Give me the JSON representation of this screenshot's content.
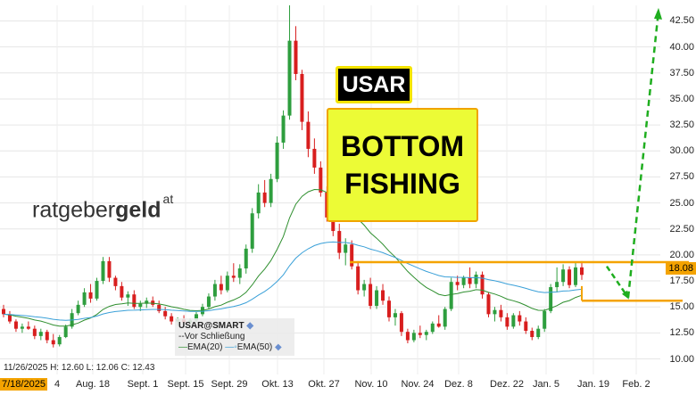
{
  "chart_data": {
    "type": "candlestick",
    "symbol": "USAR@SMART",
    "close_note": "--Vor Schließung",
    "legend": [
      "EMA(20)",
      "EMA(50)"
    ],
    "info_line": "11/26/2025 H: 12.60 L: 12.06 C: 12.43",
    "x_ticks": [
      "7/18/2025",
      "4",
      "Aug. 18",
      "Sept. 1",
      "Sept. 15",
      "Sept. 29",
      "Okt. 13",
      "Okt. 27",
      "Nov. 10",
      "Nov. 24",
      "Dez. 8",
      "Dez. 22",
      "Jan. 5",
      "Jan. 19",
      "Feb. 2"
    ],
    "y_ticks": [
      "10.00",
      "12.50",
      "15.00",
      "17.50",
      "20.00",
      "22.50",
      "25.00",
      "27.50",
      "30.00",
      "32.50",
      "35.00",
      "37.50",
      "40.00",
      "42.50"
    ],
    "ylim": [
      8.5,
      44
    ],
    "last_price": "18.08",
    "resistance": 19.3,
    "support": 15.6,
    "target": 43.5,
    "candles": [
      [
        14.8,
        15.2,
        14.0,
        14.3
      ],
      [
        14.3,
        14.6,
        13.4,
        13.6
      ],
      [
        13.6,
        13.8,
        12.6,
        12.9
      ],
      [
        12.9,
        13.4,
        12.5,
        13.1
      ],
      [
        13.1,
        13.6,
        12.8,
        12.9
      ],
      [
        12.9,
        13.2,
        11.9,
        12.2
      ],
      [
        12.2,
        12.9,
        11.8,
        12.6
      ],
      [
        12.6,
        12.8,
        11.5,
        11.8
      ],
      [
        11.8,
        12.4,
        11.1,
        11.4
      ],
      [
        11.4,
        12.3,
        11.2,
        12.1
      ],
      [
        12.1,
        13.3,
        12.0,
        13.1
      ],
      [
        13.1,
        14.8,
        12.9,
        14.4
      ],
      [
        14.4,
        15.6,
        14.2,
        15.2
      ],
      [
        15.2,
        16.8,
        15.0,
        16.4
      ],
      [
        16.4,
        17.2,
        15.4,
        15.8
      ],
      [
        15.8,
        17.8,
        15.6,
        17.5
      ],
      [
        17.5,
        19.8,
        17.2,
        19.4
      ],
      [
        19.4,
        19.8,
        17.4,
        17.8
      ],
      [
        17.8,
        18.0,
        16.6,
        17.0
      ],
      [
        17.0,
        17.4,
        15.6,
        15.9
      ],
      [
        15.9,
        16.5,
        15.1,
        16.2
      ],
      [
        16.2,
        16.6,
        14.8,
        15.0
      ],
      [
        15.0,
        15.6,
        14.6,
        15.3
      ],
      [
        15.3,
        15.9,
        14.9,
        15.6
      ],
      [
        15.6,
        16.0,
        15.0,
        15.2
      ],
      [
        15.2,
        15.6,
        14.4,
        14.6
      ],
      [
        14.6,
        15.0,
        13.8,
        14.1
      ],
      [
        14.1,
        14.4,
        13.3,
        13.6
      ],
      [
        13.6,
        14.0,
        13.2,
        13.8
      ],
      [
        13.8,
        14.2,
        13.4,
        13.5
      ],
      [
        13.5,
        13.9,
        13.1,
        13.7
      ],
      [
        13.7,
        14.5,
        13.5,
        14.3
      ],
      [
        14.3,
        15.3,
        14.1,
        15.0
      ],
      [
        15.0,
        16.3,
        14.8,
        16.0
      ],
      [
        16.0,
        17.6,
        15.6,
        17.2
      ],
      [
        17.2,
        18.0,
        16.2,
        16.6
      ],
      [
        16.6,
        18.4,
        16.4,
        18.0
      ],
      [
        18.0,
        19.2,
        17.4,
        17.8
      ],
      [
        17.8,
        19.1,
        17.2,
        18.7
      ],
      [
        18.7,
        21.0,
        18.2,
        20.6
      ],
      [
        20.6,
        24.5,
        20.2,
        24.0
      ],
      [
        24.0,
        26.8,
        23.5,
        26.0
      ],
      [
        26.0,
        27.2,
        24.6,
        25.0
      ],
      [
        25.0,
        27.8,
        24.6,
        27.3
      ],
      [
        27.3,
        31.4,
        27.0,
        30.8
      ],
      [
        30.8,
        33.9,
        30.2,
        33.4
      ],
      [
        33.4,
        44.0,
        33.0,
        40.6
      ],
      [
        40.6,
        42.0,
        36.8,
        37.4
      ],
      [
        37.4,
        37.8,
        32.0,
        32.8
      ],
      [
        32.8,
        33.8,
        29.4,
        30.2
      ],
      [
        30.2,
        31.2,
        27.8,
        28.4
      ],
      [
        28.4,
        29.0,
        25.6,
        26.0
      ],
      [
        26.0,
        26.6,
        23.2,
        23.6
      ],
      [
        23.6,
        24.2,
        21.8,
        22.3
      ],
      [
        22.3,
        23.0,
        19.6,
        20.2
      ],
      [
        20.2,
        21.6,
        19.0,
        21.0
      ],
      [
        21.0,
        21.4,
        18.6,
        18.9
      ],
      [
        18.9,
        19.4,
        16.2,
        16.6
      ],
      [
        16.6,
        17.6,
        16.0,
        17.2
      ],
      [
        17.2,
        17.8,
        14.8,
        15.1
      ],
      [
        15.1,
        17.0,
        14.8,
        16.6
      ],
      [
        16.6,
        17.2,
        15.2,
        15.6
      ],
      [
        15.6,
        16.0,
        13.6,
        14.0
      ],
      [
        14.0,
        14.8,
        13.2,
        14.4
      ],
      [
        14.4,
        14.6,
        12.2,
        12.6
      ],
      [
        12.6,
        12.9,
        11.5,
        11.8
      ],
      [
        11.8,
        12.8,
        11.6,
        12.5
      ],
      [
        12.5,
        13.2,
        12.0,
        12.3
      ],
      [
        12.3,
        12.8,
        11.8,
        12.6
      ],
      [
        12.6,
        13.6,
        12.4,
        13.4
      ],
      [
        13.4,
        14.2,
        13.0,
        13.1
      ],
      [
        13.1,
        15.0,
        12.8,
        14.8
      ],
      [
        14.8,
        17.8,
        14.6,
        17.4
      ],
      [
        17.4,
        18.0,
        16.6,
        17.1
      ],
      [
        17.1,
        18.0,
        16.8,
        17.8
      ],
      [
        17.8,
        18.8,
        16.8,
        17.2
      ],
      [
        17.2,
        18.4,
        16.8,
        18.1
      ],
      [
        18.1,
        18.4,
        15.8,
        16.2
      ],
      [
        16.2,
        16.4,
        14.0,
        14.3
      ],
      [
        14.3,
        15.0,
        13.6,
        14.7
      ],
      [
        14.7,
        15.2,
        13.6,
        14.0
      ],
      [
        14.0,
        14.4,
        12.8,
        13.1
      ],
      [
        13.1,
        14.4,
        12.9,
        14.2
      ],
      [
        14.2,
        14.6,
        13.2,
        13.6
      ],
      [
        13.6,
        14.0,
        12.4,
        12.7
      ],
      [
        12.7,
        13.0,
        11.8,
        12.1
      ],
      [
        12.1,
        13.2,
        11.9,
        12.9
      ],
      [
        12.9,
        14.8,
        12.6,
        14.6
      ],
      [
        14.6,
        17.2,
        14.4,
        16.9
      ],
      [
        16.9,
        18.8,
        16.4,
        17.4
      ],
      [
        17.4,
        19.1,
        17.0,
        18.6
      ],
      [
        18.6,
        18.9,
        16.8,
        17.1
      ],
      [
        17.1,
        19.3,
        16.9,
        18.8
      ],
      [
        18.8,
        19.4,
        17.6,
        18.08
      ]
    ]
  }
}
